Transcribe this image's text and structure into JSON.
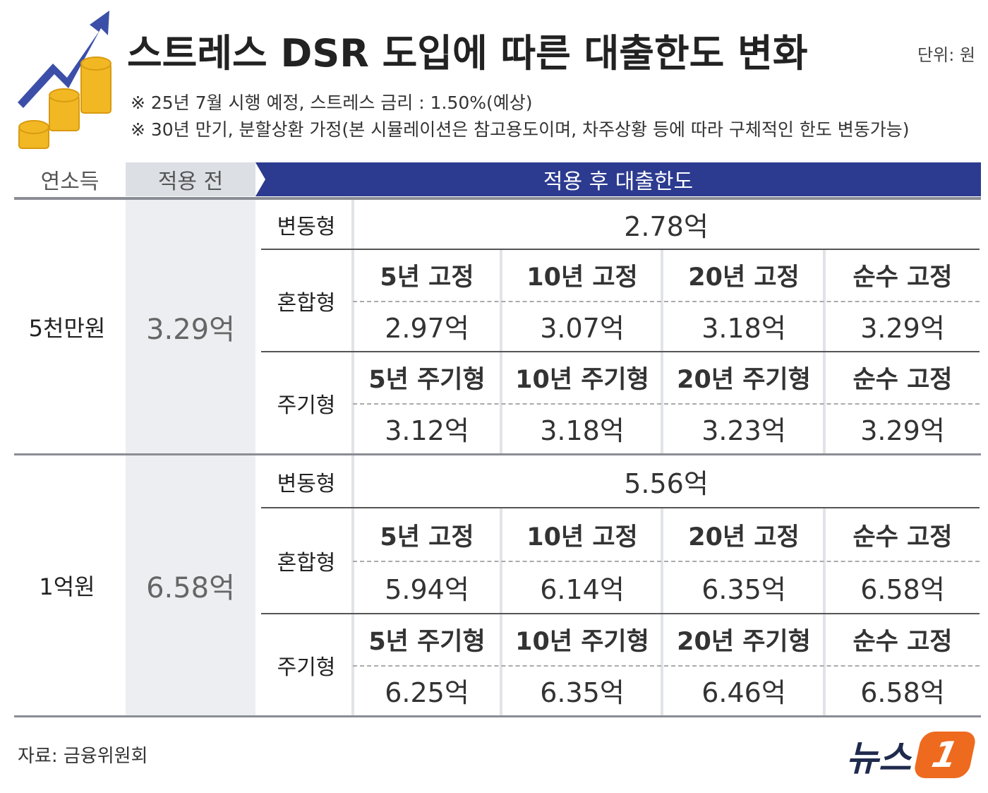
{
  "header": {
    "title": "스트레스 DSR 도입에 따른 대출한도 변화",
    "unit": "단위: 원",
    "notes": [
      "※ 25년 7월 시행 예정, 스트레스 금리 : 1.50%(예상)",
      "※ 30년 만기, 분할상환 가정(본 시뮬레이션은 참고용도이며, 차주상황 등에 따라 구체적인 한도 변동가능)"
    ]
  },
  "table": {
    "headers": [
      "연소득",
      "적용 전",
      "적용 후 대출한도"
    ],
    "groups": [
      {
        "income": "5천만원",
        "before": "3.29억",
        "variable": {
          "label": "변동형",
          "value": "2.78억"
        },
        "mixed": {
          "label": "혼합형",
          "items": [
            {
              "name": "5년 고정",
              "value": "2.97억"
            },
            {
              "name": "10년 고정",
              "value": "3.07억"
            },
            {
              "name": "20년 고정",
              "value": "3.18억"
            },
            {
              "name": "순수 고정",
              "value": "3.29억"
            }
          ]
        },
        "periodic": {
          "label": "주기형",
          "items": [
            {
              "name": "5년 주기형",
              "value": "3.12억"
            },
            {
              "name": "10년 주기형",
              "value": "3.18억"
            },
            {
              "name": "20년 주기형",
              "value": "3.23억"
            },
            {
              "name": "순수 고정",
              "value": "3.29억"
            }
          ]
        }
      },
      {
        "income": "1억원",
        "before": "6.58억",
        "variable": {
          "label": "변동형",
          "value": "5.56억"
        },
        "mixed": {
          "label": "혼합형",
          "items": [
            {
              "name": "5년 고정",
              "value": "5.94억"
            },
            {
              "name": "10년 고정",
              "value": "6.14억"
            },
            {
              "name": "20년 고정",
              "value": "6.35억"
            },
            {
              "name": "순수 고정",
              "value": "6.58억"
            }
          ]
        },
        "periodic": {
          "label": "주기형",
          "items": [
            {
              "name": "5년 주기형",
              "value": "6.25억"
            },
            {
              "name": "10년 주기형",
              "value": "6.35억"
            },
            {
              "name": "20년 주기형",
              "value": "6.46억"
            },
            {
              "name": "순수 고정",
              "value": "6.58억"
            }
          ]
        }
      }
    ]
  },
  "footer": {
    "source": "자료: 금융위원회",
    "logo_text": "뉴스",
    "logo_mark": "1"
  }
}
